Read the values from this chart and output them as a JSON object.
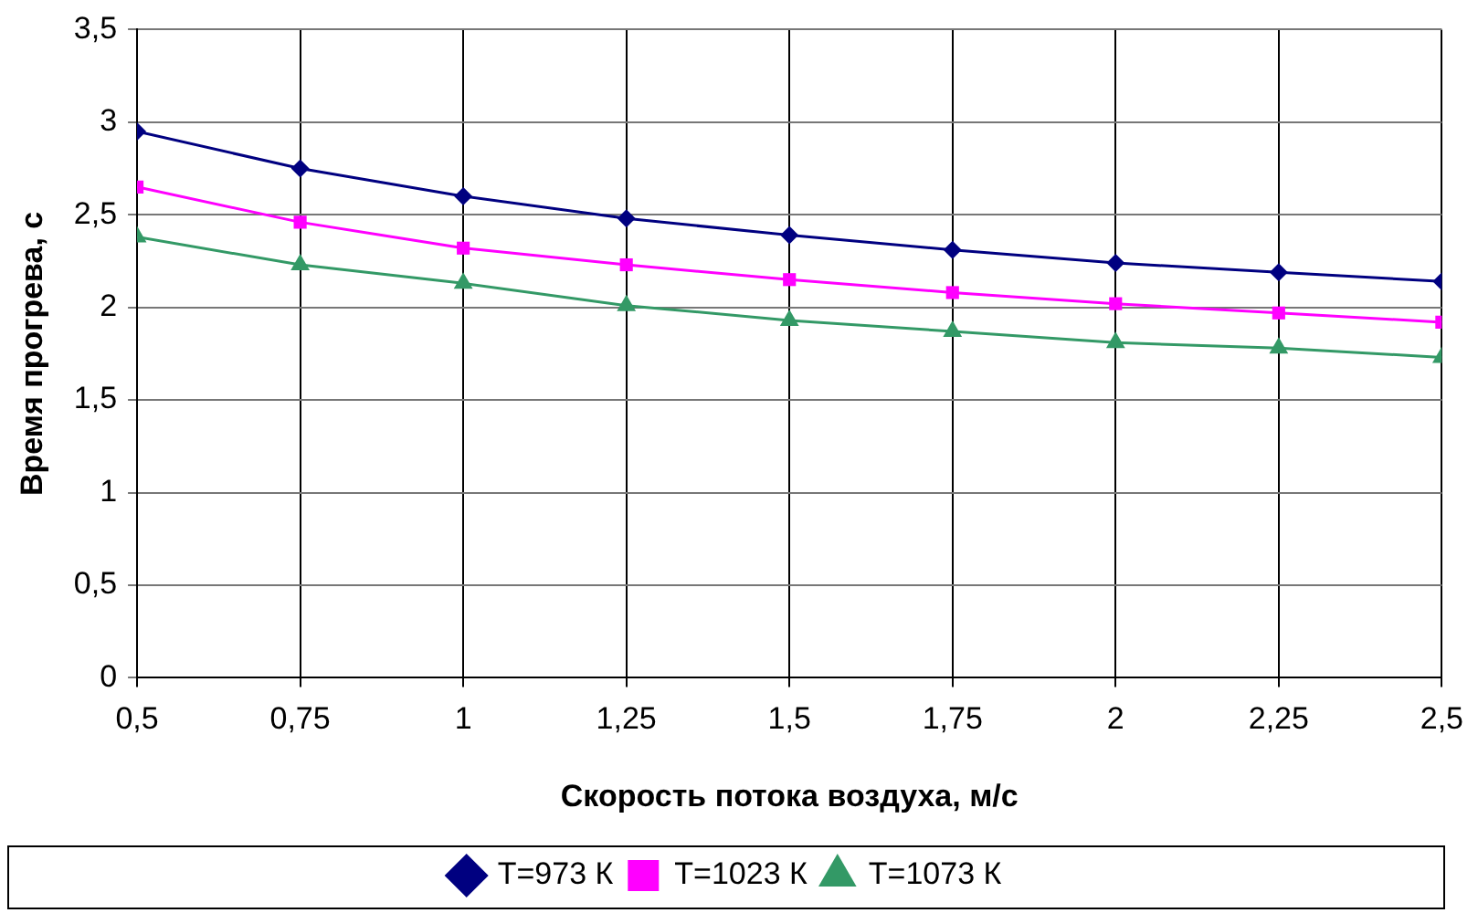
{
  "chart_data": {
    "type": "line",
    "xlabel": "Скорость потока воздуха, м/с",
    "ylabel": "Время прогрева, с",
    "x": [
      0.5,
      0.75,
      1,
      1.25,
      1.5,
      1.75,
      2,
      2.25,
      2.5
    ],
    "series": [
      {
        "name": "T=973 К",
        "color": "#000080",
        "marker": "diamond",
        "values": [
          2.95,
          2.75,
          2.6,
          2.48,
          2.39,
          2.31,
          2.24,
          2.19,
          2.14
        ]
      },
      {
        "name": "T=1023 К",
        "color": "#ff00ff",
        "marker": "square",
        "values": [
          2.65,
          2.46,
          2.32,
          2.23,
          2.15,
          2.08,
          2.02,
          1.97,
          1.92
        ]
      },
      {
        "name": "T=1073 К",
        "color": "#339966",
        "marker": "triangle",
        "values": [
          2.38,
          2.23,
          2.13,
          2.01,
          1.93,
          1.87,
          1.81,
          1.78,
          1.73
        ]
      }
    ],
    "xlim": [
      0.5,
      2.5
    ],
    "xticks": [
      {
        "value": 0.5,
        "label": "0,5"
      },
      {
        "value": 0.75,
        "label": "0,75"
      },
      1,
      {
        "value": 1.25,
        "label": "1,25"
      },
      {
        "value": 1.5,
        "label": "1,5"
      },
      {
        "value": 1.75,
        "label": "1,75"
      },
      2,
      {
        "value": 2.25,
        "label": "2,25"
      },
      {
        "value": 2.5,
        "label": "2,5"
      }
    ],
    "ylim": [
      0,
      3.5
    ],
    "yticks": [
      0,
      {
        "value": 0.5,
        "label": "0,5"
      },
      1,
      {
        "value": 1.5,
        "label": "1,5"
      },
      2,
      {
        "value": 2.5,
        "label": "2,5"
      },
      3,
      {
        "value": 3.5,
        "label": "3,5"
      }
    ],
    "grid": true,
    "legend": "bottom",
    "line_style": "solid"
  }
}
